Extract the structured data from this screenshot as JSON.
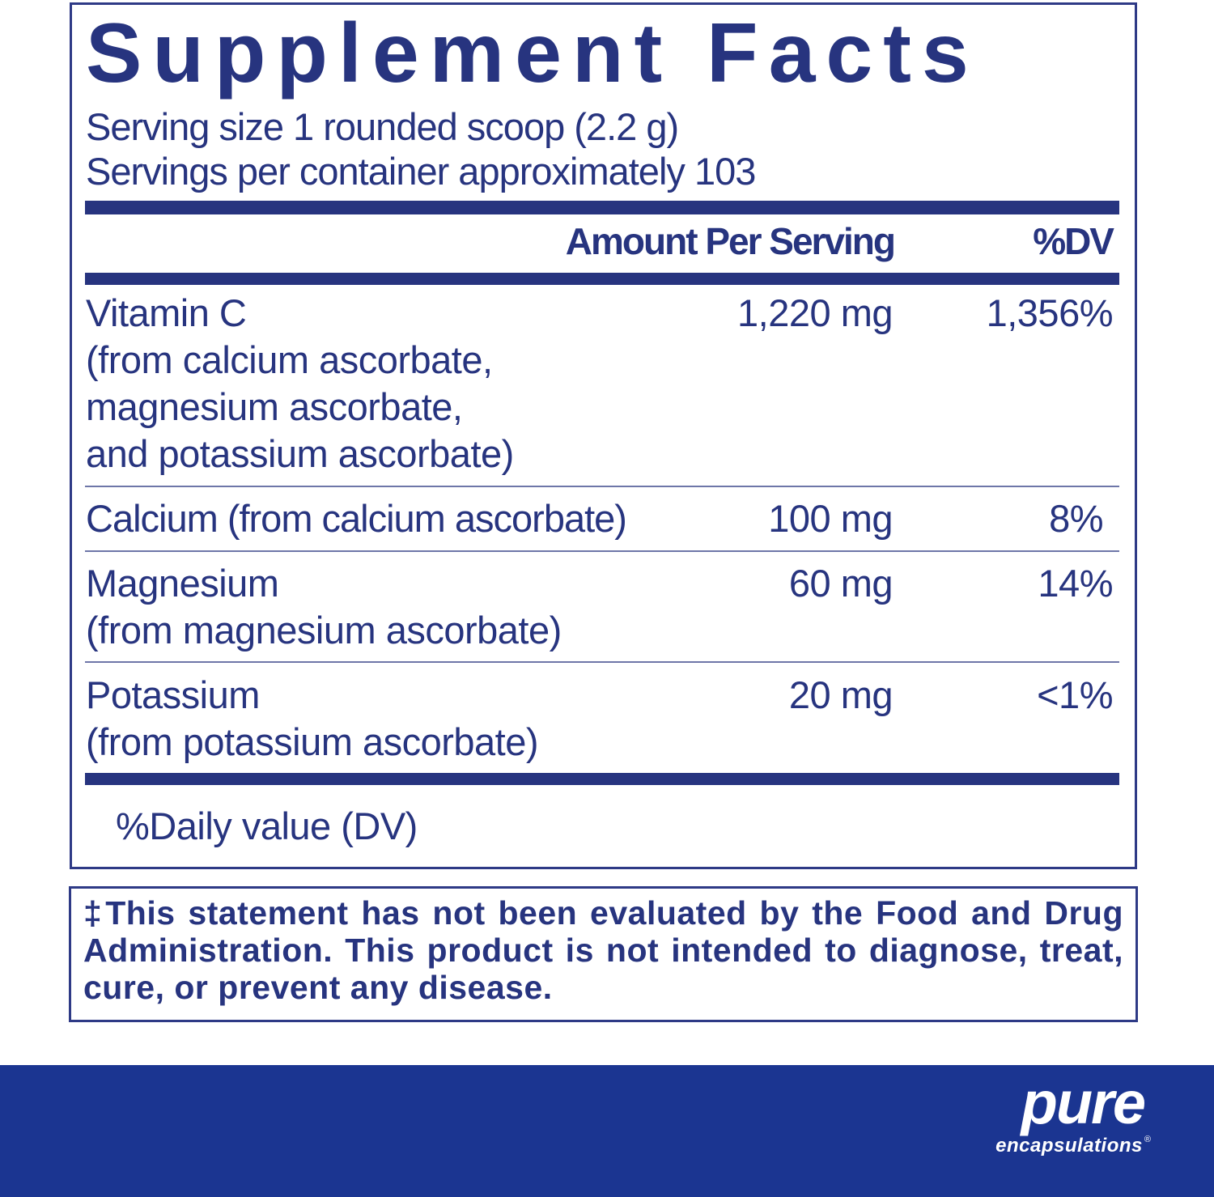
{
  "title": "Supplement Facts",
  "serving_size": "Serving size  1 rounded scoop (2.2 g)",
  "servings_per_container": "Servings per container  approximately 103",
  "header": {
    "amount": "Amount Per Serving",
    "dv": "%DV"
  },
  "rows": [
    {
      "name": "Vitamin C",
      "sub": [
        "(from calcium ascorbate,",
        "magnesium ascorbate,",
        "and potassium ascorbate)"
      ],
      "amount": "1,220 mg",
      "dv": "1,356%"
    },
    {
      "name": "Calcium (from calcium ascorbate)",
      "amount": "100 mg",
      "dv": "8%"
    },
    {
      "name": "Magnesium",
      "sub": [
        "(from magnesium ascorbate)"
      ],
      "amount": "60 mg",
      "dv": "14%"
    },
    {
      "name": "Potassium",
      "sub": [
        "(from potassium ascorbate)"
      ],
      "amount": "20 mg",
      "dv": "<1%"
    }
  ],
  "footnote": "%Daily value (DV)",
  "disclaimer": "‡This statement has not been evaluated by the Food and Drug Administration. This product is not intended to diagnose, treat, cure, or prevent any disease.",
  "brand": {
    "line1": "pure",
    "line2": "encapsulations",
    "registered": "®"
  },
  "colors": {
    "text": "#27347f",
    "band": "#1b3591"
  }
}
